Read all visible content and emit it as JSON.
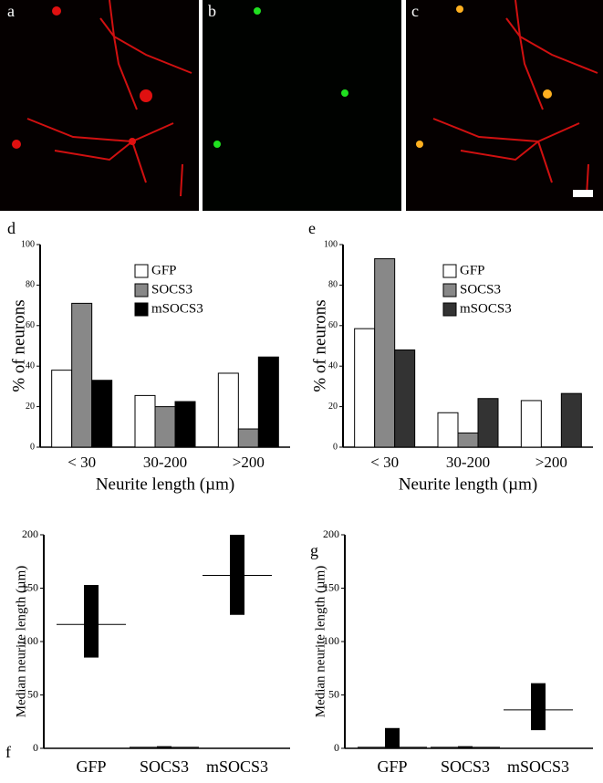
{
  "panels": [
    {
      "label": "a"
    },
    {
      "label": "b"
    },
    {
      "label": "c"
    }
  ],
  "chart_data": [
    {
      "type": "bar",
      "panel_label": "d",
      "ylabel": "% of neurons",
      "xlabel": "Neurite length (µm)",
      "categories": [
        "< 30",
        "30-200",
        ">200"
      ],
      "series": [
        {
          "name": "GFP",
          "color": "#ffffff",
          "values": [
            38,
            25.5,
            36.5
          ]
        },
        {
          "name": "SOCS3",
          "color": "#888888",
          "values": [
            71,
            20,
            9
          ]
        },
        {
          "name": "mSOCS3",
          "color": "#000000",
          "values": [
            33,
            22.5,
            44.5
          ]
        }
      ],
      "ylim": [
        0,
        100
      ],
      "yticks": [
        0,
        20,
        40,
        60,
        80,
        100
      ]
    },
    {
      "type": "bar",
      "panel_label": "e",
      "ylabel": "% of neurons",
      "xlabel": "Neurite length (µm)",
      "categories": [
        "< 30",
        "30-200",
        ">200"
      ],
      "series": [
        {
          "name": "GFP",
          "color": "#ffffff",
          "values": [
            58.5,
            17,
            23
          ]
        },
        {
          "name": "SOCS3",
          "color": "#888888",
          "values": [
            93,
            7,
            0
          ]
        },
        {
          "name": "mSOCS3",
          "color": "#333333",
          "values": [
            48,
            24,
            26.5
          ]
        }
      ],
      "ylim": [
        0,
        100
      ],
      "yticks": [
        0,
        20,
        40,
        60,
        80,
        100
      ]
    },
    {
      "type": "range",
      "panel_label": "f",
      "ylabel": "Median neurite length (µm)",
      "categories": [
        "GFP",
        "SOCS3",
        "mSOCS3"
      ],
      "low": [
        85,
        0,
        125
      ],
      "high": [
        153,
        2,
        200
      ],
      "median": [
        116,
        1,
        162
      ],
      "color": "#000000",
      "ylim": [
        0,
        200
      ],
      "yticks": [
        0,
        50,
        100,
        150,
        200
      ]
    },
    {
      "type": "range",
      "panel_label": "g",
      "ylabel": "Median neurite length (µm)",
      "categories": [
        "GFP",
        "SOCS3",
        "mSOCS3"
      ],
      "low": [
        0,
        0,
        17
      ],
      "high": [
        19,
        2,
        61
      ],
      "median": [
        1,
        1,
        36
      ],
      "color": "#000000",
      "ylim": [
        0,
        200
      ],
      "yticks": [
        0,
        50,
        100,
        150,
        200
      ]
    }
  ]
}
